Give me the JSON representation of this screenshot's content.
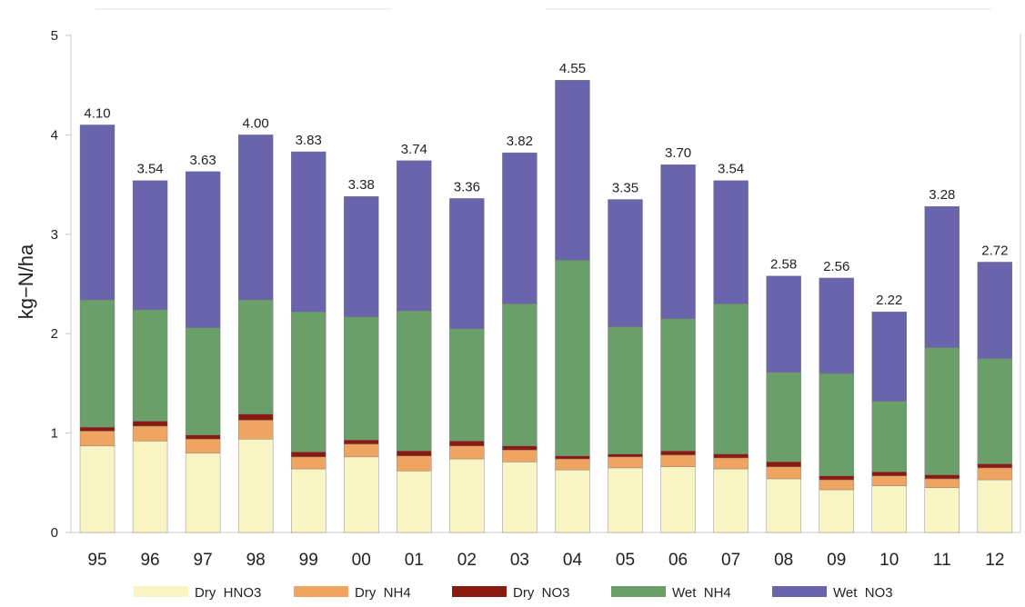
{
  "chart_data": {
    "type": "bar",
    "stacked": true,
    "ylabel": "kg−N/ha",
    "ylim": [
      0,
      5
    ],
    "yticks": [
      "0",
      "1",
      "2",
      "3",
      "4",
      "5"
    ],
    "categories": [
      "95",
      "96",
      "97",
      "98",
      "99",
      "00",
      "01",
      "02",
      "03",
      "04",
      "05",
      "06",
      "07",
      "08",
      "09",
      "10",
      "11",
      "12"
    ],
    "series": [
      {
        "name": "Dry  HNO3",
        "color": "#f8f4c4",
        "values": [
          0.87,
          0.92,
          0.8,
          0.94,
          0.64,
          0.76,
          0.62,
          0.74,
          0.71,
          0.63,
          0.65,
          0.66,
          0.64,
          0.54,
          0.43,
          0.47,
          0.45,
          0.53
        ]
      },
      {
        "name": "Dry  NH4",
        "color": "#f0a462",
        "values": [
          0.15,
          0.15,
          0.14,
          0.19,
          0.12,
          0.13,
          0.15,
          0.13,
          0.12,
          0.11,
          0.11,
          0.12,
          0.11,
          0.12,
          0.1,
          0.1,
          0.09,
          0.12
        ]
      },
      {
        "name": "Dry  NO3",
        "color": "#8b1a10",
        "values": [
          0.04,
          0.05,
          0.04,
          0.06,
          0.05,
          0.04,
          0.05,
          0.05,
          0.04,
          0.03,
          0.03,
          0.04,
          0.04,
          0.05,
          0.04,
          0.04,
          0.04,
          0.04
        ]
      },
      {
        "name": "Wet  NH4",
        "color": "#6a9f6a",
        "values": [
          1.28,
          1.12,
          1.08,
          1.15,
          1.41,
          1.24,
          1.41,
          1.13,
          1.43,
          1.97,
          1.28,
          1.33,
          1.51,
          0.9,
          1.03,
          0.71,
          1.28,
          1.06
        ]
      },
      {
        "name": "Wet  NO3",
        "color": "#6a64ac",
        "values": [
          1.76,
          1.3,
          1.57,
          1.66,
          1.61,
          1.21,
          1.51,
          1.31,
          1.52,
          1.81,
          1.28,
          1.55,
          1.24,
          0.97,
          0.96,
          0.9,
          1.42,
          0.97
        ]
      }
    ],
    "totals": [
      "4.10",
      "3.54",
      "3.63",
      "4.00",
      "3.83",
      "3.38",
      "3.74",
      "3.36",
      "3.82",
      "4.55",
      "3.35",
      "3.70",
      "3.54",
      "2.58",
      "2.56",
      "2.22",
      "3.28",
      "2.72"
    ],
    "totals_values": [
      4.1,
      3.54,
      3.63,
      4.0,
      3.83,
      3.38,
      3.74,
      3.36,
      3.82,
      4.55,
      3.35,
      3.7,
      3.54,
      2.58,
      2.56,
      2.22,
      3.28,
      2.72
    ],
    "grid": false,
    "legend": "bottom"
  }
}
